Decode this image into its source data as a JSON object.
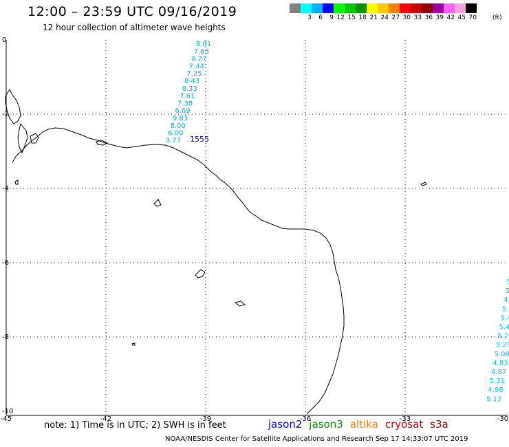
{
  "header": {
    "title": "12:00 – 23:59 UTC 09/16/2019",
    "subtitle": "12 hour collection of altimeter wave heights"
  },
  "scale": {
    "colors": [
      "#808080",
      "#00ffff",
      "#00b0ff",
      "#0000ff",
      "#00ff00",
      "#00c800",
      "#009600",
      "#ffff00",
      "#ffc800",
      "#ff8000",
      "#ff0000",
      "#c80000",
      "#960000",
      "#a000a0",
      "#ff60ff",
      "#ffa0e0",
      "#000000"
    ],
    "labels": [
      "",
      "3",
      "6",
      "9",
      "12",
      "15",
      "18",
      "21",
      "24",
      "27",
      "30",
      "33",
      "36",
      "39",
      "42",
      "45",
      "70"
    ],
    "unit": "(ft)"
  },
  "map": {
    "x_labels": [
      "-45",
      "-42",
      "-39",
      "-36",
      "-33",
      "-30"
    ],
    "y_labels": [
      "0",
      "-2",
      "-4",
      "-6",
      "-8",
      "-10"
    ],
    "track1_values": [
      "8.01",
      "7.63",
      "8.27",
      "7.44",
      "7.25",
      "8.43",
      "8.33",
      "7.61",
      "7.38",
      "6.69",
      "9.83",
      "8.00",
      "6.00",
      "3.77"
    ],
    "track1_time": "1555",
    "track2_values": [
      "5",
      "5.",
      "4.",
      "5.",
      "5.4",
      "5.4",
      "5.2",
      "5.29",
      "5.08",
      "4.83",
      "4.87",
      "5.31",
      "4.98",
      "5.12"
    ]
  },
  "footer": {
    "note": "note:  1) Time is in UTC;  2) SWH is in feet",
    "satellites": [
      {
        "name": "jason2",
        "color": "#0000ff"
      },
      {
        "name": "jason3",
        "color": "#009600"
      },
      {
        "name": "altika",
        "color": "#ff8000"
      },
      {
        "name": "cryosat",
        "color": "#c80000"
      },
      {
        "name": "s3a",
        "color": "#960000"
      }
    ],
    "credit": "NOAA/NESDIS Center for Satellite Applications and Research    Sep 17 14:33:07 UTC 2019"
  }
}
